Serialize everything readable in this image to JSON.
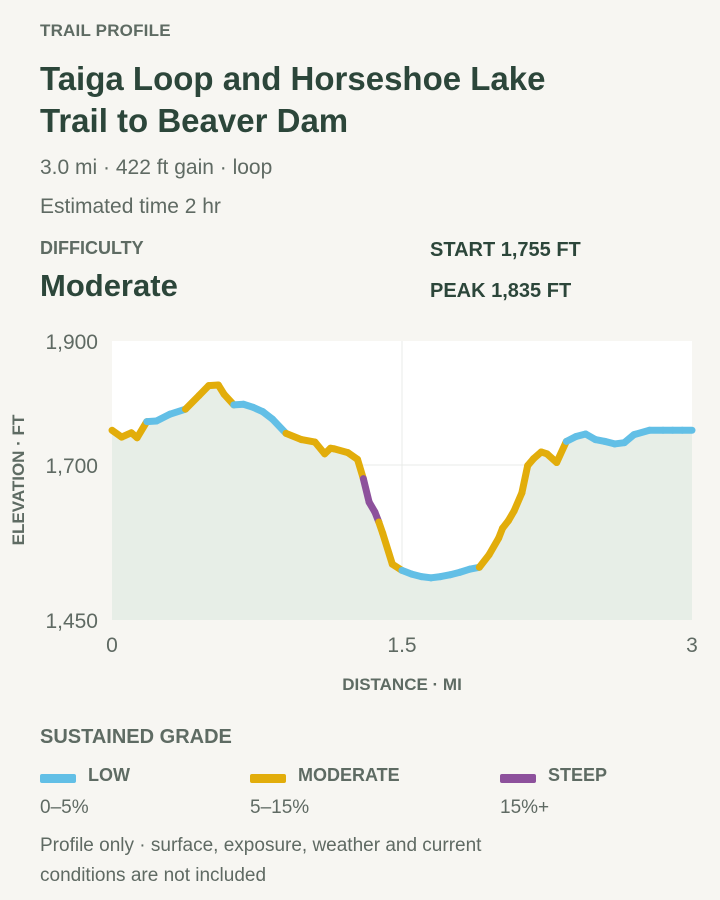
{
  "header": {
    "eyebrow": "TRAIL PROFILE",
    "title": "Taiga Loop and Horseshoe Lake Trail to Beaver Dam",
    "stats": "3.0 mi · 422 ft gain · loop",
    "time": "Estimated time 2 hr"
  },
  "summary": {
    "difficulty_label": "DIFFICULTY",
    "difficulty_value": "Moderate",
    "start": "START 1,755 FT",
    "peak": "PEAK 1,835 FT"
  },
  "chart_data": {
    "type": "area",
    "xlabel": "DISTANCE · MI",
    "ylabel": "ELEVATION · FT",
    "xlim": [
      0,
      3
    ],
    "ylim": [
      1450,
      1900
    ],
    "x_ticks": [
      0,
      1.5,
      3
    ],
    "x_tick_labels": [
      "0",
      "1.5",
      "3"
    ],
    "y_ticks": [
      1450,
      1700,
      1900
    ],
    "y_tick_labels": [
      "1,450",
      "1,700",
      "1,900"
    ],
    "grid": true,
    "grade_colors": {
      "low": "#62bfe6",
      "moderate": "#e2ad0b",
      "steep": "#8d519c"
    },
    "area_color": "#e7eee7",
    "series": [
      {
        "x": [
          0,
          0.05,
          0.1,
          0.13,
          0.18,
          0.23,
          0.3,
          0.38,
          0.45,
          0.5,
          0.55,
          0.58,
          0.63,
          0.68,
          0.73,
          0.78,
          0.83,
          0.9,
          0.98,
          1.05,
          1.1,
          1.13,
          1.15,
          1.22,
          1.27,
          1.3,
          1.33,
          1.36,
          1.38,
          1.4,
          1.45,
          1.5,
          1.55,
          1.6,
          1.65,
          1.7,
          1.75,
          1.8,
          1.85,
          1.9,
          1.95,
          2.0,
          2.02,
          2.05,
          2.08,
          2.12,
          2.15,
          2.18,
          2.22,
          2.25,
          2.3,
          2.35,
          2.4,
          2.45,
          2.5,
          2.55,
          2.6,
          2.65,
          2.7,
          2.78,
          2.85,
          2.9,
          2.95,
          3.0
        ],
        "y": [
          1756,
          1745,
          1752,
          1744,
          1770,
          1771,
          1782,
          1790,
          1812,
          1828,
          1829,
          1814,
          1797,
          1798,
          1793,
          1786,
          1774,
          1751,
          1741,
          1737,
          1718,
          1727,
          1726,
          1720,
          1709,
          1678,
          1640,
          1624,
          1608,
          1590,
          1540,
          1530,
          1524,
          1520,
          1518,
          1520,
          1523,
          1527,
          1532,
          1535,
          1555,
          1582,
          1598,
          1610,
          1626,
          1655,
          1699,
          1710,
          1721,
          1718,
          1704,
          1738,
          1746,
          1750,
          1741,
          1738,
          1734,
          1736,
          1749,
          1756,
          1756,
          1756,
          1756,
          1756
        ],
        "grade": [
          "moderate",
          "moderate",
          "moderate",
          "moderate",
          "low",
          "low",
          "low",
          "moderate",
          "moderate",
          "moderate",
          "moderate",
          "moderate",
          "low",
          "low",
          "low",
          "low",
          "low",
          "moderate",
          "moderate",
          "moderate",
          "moderate",
          "moderate",
          "moderate",
          "moderate",
          "moderate",
          "steep",
          "steep",
          "steep",
          "moderate",
          "moderate",
          "moderate",
          "low",
          "low",
          "low",
          "low",
          "low",
          "low",
          "low",
          "low",
          "moderate",
          "moderate",
          "moderate",
          "moderate",
          "moderate",
          "moderate",
          "moderate",
          "moderate",
          "moderate",
          "moderate",
          "moderate",
          "moderate",
          "low",
          "low",
          "low",
          "low",
          "low",
          "low",
          "low",
          "low",
          "low",
          "low",
          "low",
          "low"
        ]
      }
    ]
  },
  "legend": {
    "title": "SUSTAINED GRADE",
    "items": [
      {
        "label": "LOW",
        "range": "0–5%",
        "color": "#62bfe6"
      },
      {
        "label": "MODERATE",
        "range": "5–15%",
        "color": "#e2ad0b"
      },
      {
        "label": "STEEP",
        "range": "15%+",
        "color": "#8d519c"
      }
    ]
  },
  "footnote": "Profile only · surface, exposure, weather and current conditions are not included"
}
